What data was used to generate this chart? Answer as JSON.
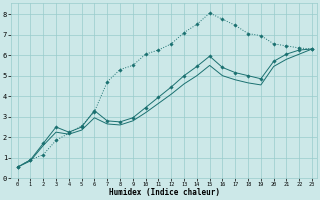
{
  "xlabel": "Humidex (Indice chaleur)",
  "bg_color": "#cce8e8",
  "grid_color": "#99cccc",
  "line_color": "#1a7070",
  "xlim_min": -0.5,
  "xlim_max": 23.4,
  "ylim_min": 0,
  "ylim_max": 8.55,
  "x_ticks": [
    0,
    1,
    2,
    3,
    4,
    5,
    6,
    7,
    8,
    9,
    10,
    11,
    12,
    13,
    14,
    15,
    16,
    17,
    18,
    19,
    20,
    21,
    22,
    23
  ],
  "y_ticks": [
    0,
    1,
    2,
    3,
    4,
    5,
    6,
    7,
    8
  ],
  "line1_x": [
    0,
    1,
    2,
    3,
    4,
    5,
    6,
    7,
    8,
    9,
    10,
    11,
    12,
    13,
    14,
    15,
    16,
    17,
    18,
    19,
    20,
    21,
    22,
    23
  ],
  "line1_y": [
    0.55,
    0.9,
    1.15,
    1.85,
    2.2,
    2.55,
    3.25,
    4.7,
    5.3,
    5.5,
    6.05,
    6.25,
    6.55,
    7.1,
    7.5,
    8.05,
    7.75,
    7.45,
    7.05,
    6.95,
    6.55,
    6.45,
    6.35,
    6.3
  ],
  "line2_x": [
    0,
    1,
    2,
    3,
    4,
    5,
    6,
    7,
    8,
    9,
    10,
    11,
    12,
    13,
    14,
    15,
    16,
    17,
    18,
    19,
    20,
    21,
    22,
    23
  ],
  "line2_y": [
    0.55,
    0.9,
    1.7,
    2.5,
    2.25,
    2.5,
    3.3,
    2.8,
    2.75,
    2.95,
    3.45,
    3.95,
    4.45,
    5.0,
    5.45,
    5.95,
    5.4,
    5.15,
    5.0,
    4.85,
    5.7,
    6.05,
    6.25,
    6.3
  ],
  "line3_x": [
    0,
    1,
    2,
    3,
    4,
    5,
    6,
    7,
    8,
    9,
    10,
    11,
    12,
    13,
    14,
    15,
    16,
    17,
    18,
    19,
    20,
    21,
    22,
    23
  ],
  "line3_y": [
    0.55,
    0.85,
    1.6,
    2.25,
    2.15,
    2.35,
    2.95,
    2.65,
    2.6,
    2.8,
    3.2,
    3.65,
    4.1,
    4.6,
    5.0,
    5.5,
    5.0,
    4.8,
    4.65,
    4.55,
    5.45,
    5.8,
    6.05,
    6.3
  ]
}
